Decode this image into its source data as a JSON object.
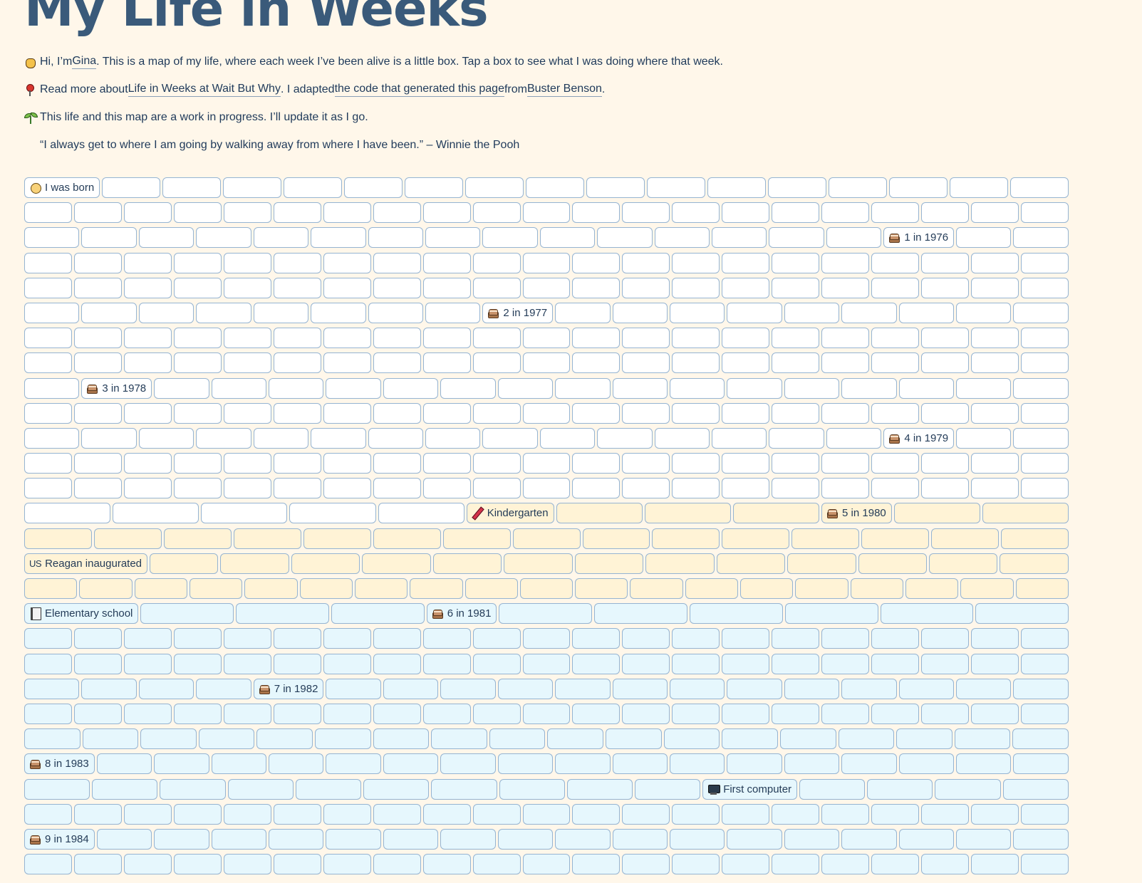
{
  "header": {
    "title": "My Life in Weeks"
  },
  "intro": {
    "line1": {
      "before": "Hi, I’m ",
      "link": "Gina",
      "after": ". This is a map of my life, where each week I’ve been alive is a little box. Tap a box to see what I was doing where that week."
    },
    "line2": {
      "before": "Read more about ",
      "link1": "Life in Weeks at Wait But Why",
      "mid": ". I adapted ",
      "link2": "the code that generated this page",
      "mid2": " from ",
      "link3": "Buster Benson",
      "after": "."
    },
    "line3": "This life and this map are a work in progress. I’ll update it as I go.",
    "line4": "“I always get to where I am going by walking away from where I have been.” – Winnie the Pooh"
  },
  "events": {
    "born": "I was born",
    "b1976": "1 in 1976",
    "b1977": "2 in 1977",
    "b1978": "3 in 1978",
    "b1979": "4 in 1979",
    "kindergarten": "Kindergarten",
    "b1980": "5 in 1980",
    "reagan_flag": "US",
    "reagan": "Reagan inaugurated",
    "elementary": "Elementary school",
    "b1981": "6 in 1981",
    "b1982": "7 in 1982",
    "b1983": "8 in 1983",
    "computer": "First computer",
    "b1984": "9 in 1984"
  },
  "colors": {
    "background": "#fff7ea",
    "box_border": "#95b4d2",
    "kindergarten_fill": "#fff3d6",
    "school_fill": "#e6f7fd",
    "title": "#3a5a7a"
  },
  "icons": [
    "wave-icon",
    "pin-icon",
    "sprout-icon",
    "honey-pot-icon",
    "baby-icon",
    "cake-icon",
    "pencil-icon",
    "flag-icon",
    "notebook-icon",
    "computer-icon"
  ]
}
